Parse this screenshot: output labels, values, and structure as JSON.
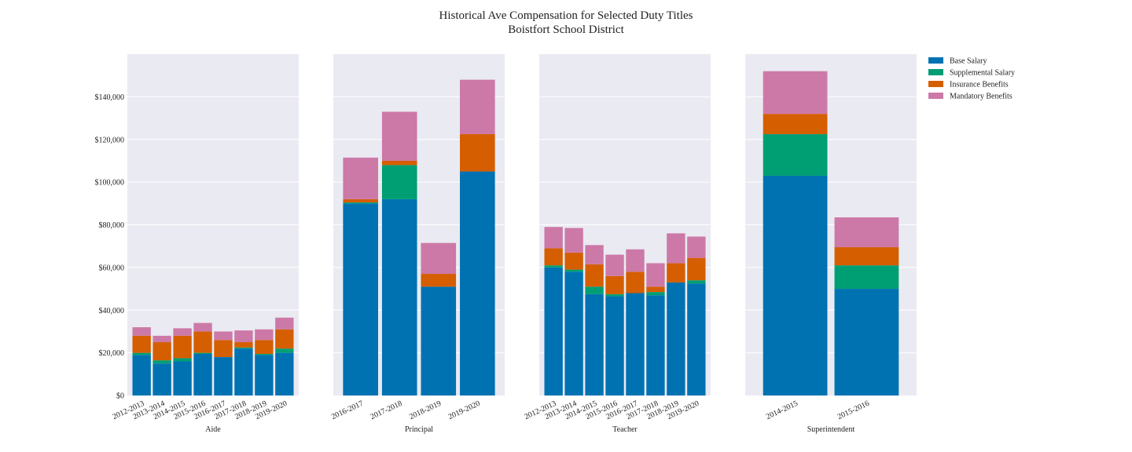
{
  "title": "Historical Ave Compensation for Selected Duty Titles",
  "subtitle": "Boistfort School District",
  "colors": {
    "base": "#0072b2",
    "supplemental": "#009e73",
    "insurance": "#d55e00",
    "mandatory": "#cc79a7",
    "plot_bg": "#eaeaf2",
    "grid": "#ffffff"
  },
  "chart_data": {
    "type": "bar",
    "stacked": true,
    "ylim": [
      0,
      160000
    ],
    "yticks": [
      0,
      20000,
      40000,
      60000,
      80000,
      100000,
      120000,
      140000
    ],
    "ytick_labels": [
      "$0",
      "$20,000",
      "$40,000",
      "$60,000",
      "$80,000",
      "$100,000",
      "$120,000",
      "$140,000"
    ],
    "grid": true,
    "legend_position": "right",
    "series_names": [
      "Base Salary",
      "Supplemental Salary",
      "Insurance Benefits",
      "Mandatory Benefits"
    ],
    "panels": [
      {
        "label": "Aide",
        "categories": [
          "2012-2013",
          "2013-2014",
          "2014-2015",
          "2015-2016",
          "2016-2017",
          "2017-2018",
          "2018-2019",
          "2019-2020"
        ],
        "series": [
          {
            "name": "Base Salary",
            "values": [
              19000,
              15000,
              16000,
              19500,
              18000,
              22000,
              19000,
              20000
            ]
          },
          {
            "name": "Supplemental Salary",
            "values": [
              1000,
              1500,
              1500,
              500,
              0,
              500,
              500,
              2000
            ]
          },
          {
            "name": "Insurance Benefits",
            "values": [
              8000,
              8500,
              10500,
              10000,
              8000,
              2500,
              6500,
              9000
            ]
          },
          {
            "name": "Mandatory Benefits",
            "values": [
              4000,
              3000,
              3500,
              4000,
              4000,
              5500,
              5000,
              5500
            ]
          }
        ]
      },
      {
        "label": "Principal",
        "categories": [
          "2016-2017",
          "2017-2018",
          "2018-2019",
          "2019-2020"
        ],
        "series": [
          {
            "name": "Base Salary",
            "values": [
              90000,
              92000,
              51000,
              105000
            ]
          },
          {
            "name": "Supplemental Salary",
            "values": [
              500,
              16000,
              0,
              0
            ]
          },
          {
            "name": "Insurance Benefits",
            "values": [
              1500,
              2000,
              6000,
              17500
            ]
          },
          {
            "name": "Mandatory Benefits",
            "values": [
              19500,
              23000,
              14500,
              25500
            ]
          }
        ]
      },
      {
        "label": "Teacher",
        "categories": [
          "2012-2013",
          "2013-2014",
          "2014-2015",
          "2015-2016",
          "2016-2017",
          "2017-2018",
          "2018-2019",
          "2019-2020"
        ],
        "series": [
          {
            "name": "Base Salary",
            "values": [
              60000,
              58000,
              47500,
              46500,
              48000,
              47000,
              53000,
              52500
            ]
          },
          {
            "name": "Supplemental Salary",
            "values": [
              1000,
              1000,
              3500,
              1000,
              0,
              1500,
              0,
              1500
            ]
          },
          {
            "name": "Insurance Benefits",
            "values": [
              8000,
              8000,
              10500,
              8500,
              10000,
              2500,
              9000,
              10500
            ]
          },
          {
            "name": "Mandatory Benefits",
            "values": [
              10000,
              11500,
              9000,
              10000,
              10500,
              11000,
              14000,
              10000
            ]
          }
        ]
      },
      {
        "label": "Superintendent",
        "categories": [
          "2014-2015",
          "2015-2016"
        ],
        "series": [
          {
            "name": "Base Salary",
            "values": [
              103000,
              50000
            ]
          },
          {
            "name": "Supplemental Salary",
            "values": [
              19500,
              11000
            ]
          },
          {
            "name": "Insurance Benefits",
            "values": [
              9500,
              8500
            ]
          },
          {
            "name": "Mandatory Benefits",
            "values": [
              20000,
              14000
            ]
          }
        ]
      }
    ]
  }
}
